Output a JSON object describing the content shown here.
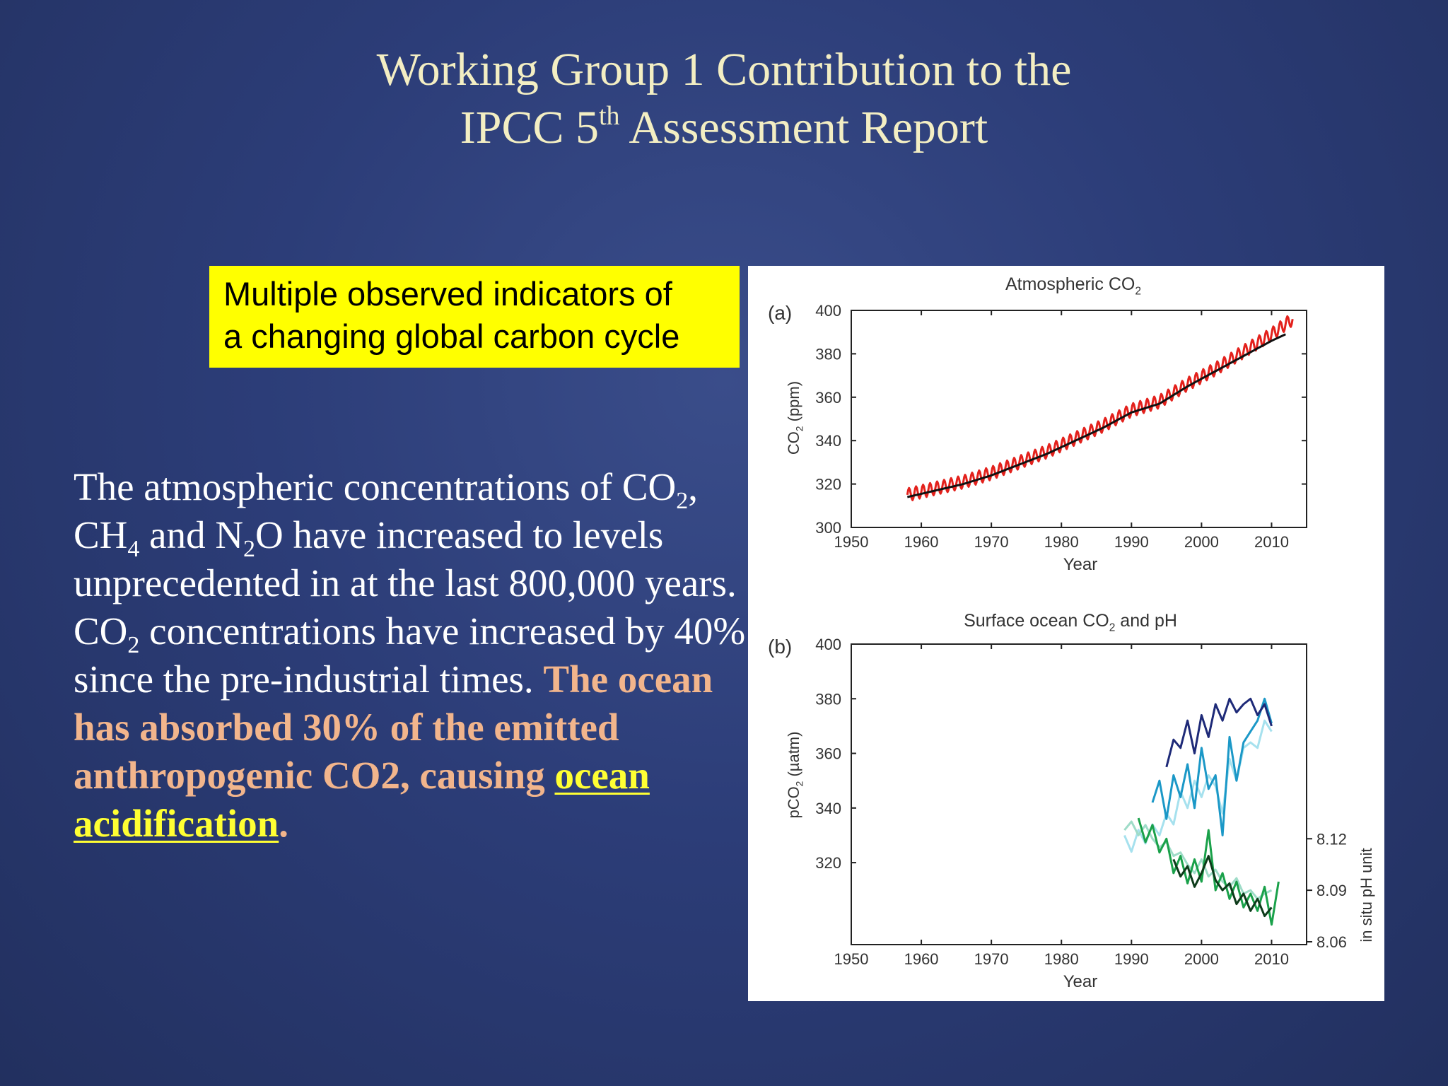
{
  "slide": {
    "title_line1": "Working Group 1 Contribution to the",
    "title_line2_pre": "IPCC 5",
    "title_line2_sup": "th",
    "title_line2_post": " Assessment Report",
    "callout_line1": "Multiple observed indicators of",
    "callout_line2": "a changing global carbon cycle",
    "body": {
      "t1": "The atmospheric concentrations of CO",
      "s1": "2",
      "t2": ", CH",
      "s2": "4",
      "t3": " and N",
      "s3": "2",
      "t4": "O have increased to levels unprecedented in at the last 800,000 years. CO",
      "s4": "2",
      "t5": " concentrations have increased by 40% since the pre-industrial times. ",
      "h1": "The ocean has absorbed 30% of the emitted anthropogenic CO2, causing ",
      "h2": "ocean acidification",
      "h3": "."
    }
  },
  "chart_data": [
    {
      "type": "line",
      "panel_label": "(a)",
      "title_main": "Atmospheric CO",
      "title_sub": "2",
      "ylabel_main": "CO",
      "ylabel_sub": "2",
      "ylabel_unit": " (ppm)",
      "xlabel": "Year",
      "xlim": [
        1950,
        2015
      ],
      "ylim": [
        300,
        400
      ],
      "xticks": [
        1950,
        1960,
        1970,
        1980,
        1990,
        2000,
        2010
      ],
      "yticks": [
        300,
        320,
        340,
        360,
        380,
        400
      ],
      "series": [
        {
          "color": "#e3211c",
          "seasonal_amplitude": 3,
          "x": [
            1958,
            1962,
            1966,
            1970,
            1974,
            1978,
            1982,
            1986,
            1990,
            1994,
            1998,
            2002,
            2006,
            2010,
            2013
          ],
          "values": [
            315,
            318,
            321,
            325,
            330,
            335,
            341,
            347,
            354,
            358,
            366,
            373,
            381,
            389,
            396
          ]
        },
        {
          "color": "#111111",
          "x": [
            1958,
            1962,
            1966,
            1970,
            1974,
            1978,
            1982,
            1986,
            1990,
            1994,
            1998,
            2002,
            2006,
            2010,
            2012
          ],
          "values": [
            314,
            317,
            320,
            324,
            329,
            334,
            340,
            346,
            353,
            357,
            365,
            372,
            379,
            386,
            389
          ]
        }
      ]
    },
    {
      "type": "line",
      "panel_label": "(b)",
      "title_main": "Surface ocean CO",
      "title_sub": "2",
      "title_post": " and pH",
      "ylabel_main": "pCO",
      "ylabel_sub": "2",
      "ylabel_unit": " (µatm)",
      "y2label": "in situ pH unit",
      "xlabel": "Year",
      "xlim": [
        1950,
        2015
      ],
      "ylim": [
        400,
        290
      ],
      "yticks": [
        320,
        340,
        360,
        380,
        400
      ],
      "y2lim": [
        8.06,
        8.235
      ],
      "y2ticks": [
        8.06,
        8.09,
        8.12
      ],
      "xticks": [
        1950,
        1960,
        1970,
        1980,
        1990,
        2000,
        2010
      ],
      "pco2_series": [
        {
          "color": "#1e2a78",
          "x": [
            1995,
            1996,
            1997,
            1998,
            1999,
            2000,
            2001,
            2002,
            2003,
            2004,
            2005,
            2006,
            2007,
            2008,
            2009,
            2010
          ],
          "values": [
            355,
            365,
            362,
            372,
            360,
            374,
            366,
            378,
            372,
            380,
            375,
            378,
            380,
            374,
            378,
            370
          ]
        },
        {
          "color": "#1b98c7",
          "x": [
            1993,
            1994,
            1995,
            1996,
            1997,
            1998,
            1999,
            2000,
            2001,
            2002,
            2003,
            2004,
            2005,
            2006,
            2007,
            2008,
            2009,
            2010
          ],
          "values": [
            342,
            350,
            336,
            352,
            344,
            356,
            340,
            362,
            347,
            352,
            330,
            366,
            350,
            364,
            368,
            372,
            380,
            371
          ]
        },
        {
          "color": "#a6e1ee",
          "x": [
            1989,
            1990,
            1991,
            1992,
            1993,
            1994,
            1995,
            1996,
            1997,
            1998,
            1999,
            2000,
            2001,
            2002,
            2003,
            2004,
            2005,
            2006,
            2007,
            2008,
            2009,
            2010
          ],
          "values": [
            330,
            324,
            332,
            327,
            334,
            330,
            338,
            334,
            346,
            340,
            350,
            344,
            352,
            348,
            338,
            358,
            350,
            362,
            364,
            362,
            372,
            368
          ]
        }
      ],
      "ph_series": [
        {
          "color": "#9fdcc8",
          "x": [
            1989,
            1990,
            1991,
            1992,
            1993,
            1994,
            1995,
            1996,
            1997,
            1998,
            1999,
            2000,
            2001,
            2002,
            2003,
            2004,
            2005,
            2006,
            2007,
            2008,
            2009,
            2010
          ],
          "values": [
            8.125,
            8.13,
            8.122,
            8.128,
            8.12,
            8.115,
            8.118,
            8.11,
            8.112,
            8.105,
            8.1,
            8.108,
            8.098,
            8.102,
            8.095,
            8.092,
            8.097,
            8.088,
            8.09,
            8.085,
            8.088,
            8.09
          ]
        },
        {
          "color": "#1aa14a",
          "x": [
            1991,
            1992,
            1993,
            1994,
            1995,
            1996,
            1997,
            1998,
            1999,
            2000,
            2001,
            2002,
            2003,
            2004,
            2005,
            2006,
            2007,
            2008,
            2009,
            2010,
            2011
          ],
          "values": [
            8.132,
            8.118,
            8.128,
            8.112,
            8.12,
            8.1,
            8.11,
            8.094,
            8.108,
            8.095,
            8.125,
            8.09,
            8.1,
            8.085,
            8.095,
            8.08,
            8.088,
            8.078,
            8.092,
            8.07,
            8.095
          ]
        },
        {
          "color": "#0d3b1a",
          "x": [
            1996,
            1997,
            1998,
            1999,
            2000,
            2001,
            2002,
            2003,
            2004,
            2005,
            2006,
            2007,
            2008,
            2009,
            2010
          ],
          "values": [
            8.108,
            8.098,
            8.104,
            8.092,
            8.1,
            8.11,
            8.096,
            8.09,
            8.094,
            8.082,
            8.088,
            8.078,
            8.085,
            8.075,
            8.08
          ]
        }
      ]
    }
  ]
}
